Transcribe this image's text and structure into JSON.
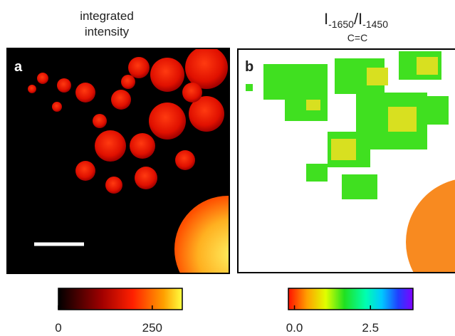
{
  "panels": [
    {
      "title_lines": [
        "integrated",
        "intensity"
      ],
      "label": "a",
      "colorbar": {
        "lim": [
          0,
          330
        ],
        "ticks": [
          0,
          250
        ]
      }
    },
    {
      "title_parts": [
        "I",
        "-1650",
        "/I",
        "-1450"
      ],
      "subtitle": "C=C",
      "label": "b",
      "colorbar": {
        "lim": [
          -0.2,
          3.9
        ],
        "ticks": [
          {
            "value": 0,
            "label": "0.0"
          },
          {
            "value": 2.5,
            "label": "2.5"
          }
        ]
      }
    }
  ]
}
